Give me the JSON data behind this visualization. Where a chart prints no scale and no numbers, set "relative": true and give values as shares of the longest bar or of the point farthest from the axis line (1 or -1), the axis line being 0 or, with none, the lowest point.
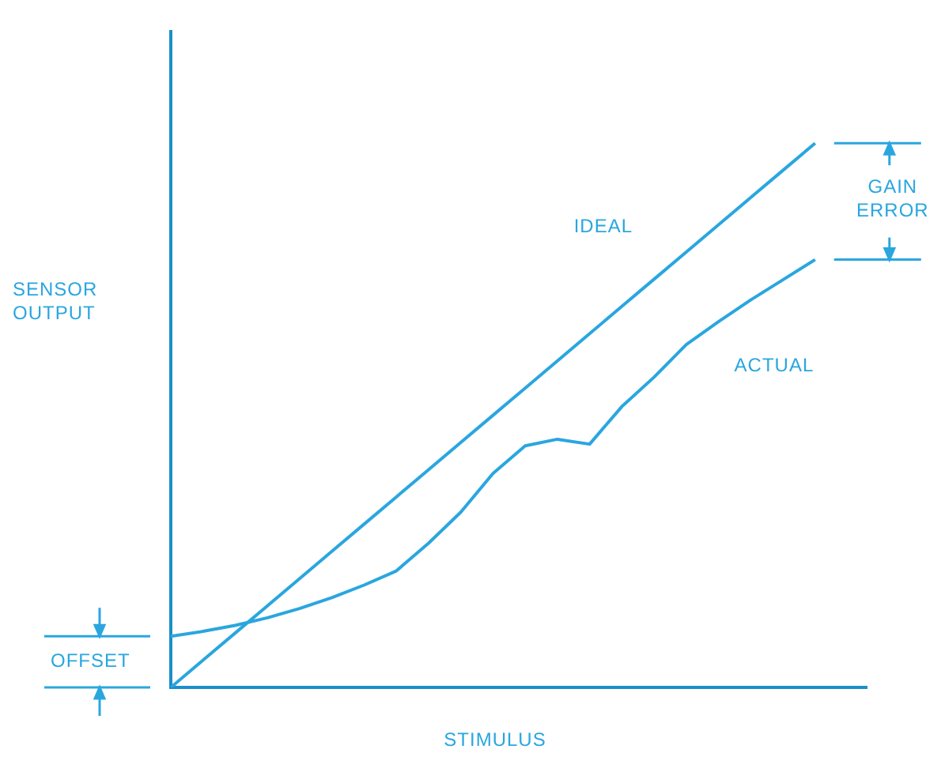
{
  "chart_data": {
    "type": "line",
    "relative": true,
    "xlabel": "STIMULUS",
    "ylabel": "SENSOR OUTPUT",
    "legend": false,
    "grid": false,
    "marker": "none",
    "line_style": "solid",
    "categories": [
      null,
      null,
      null,
      null,
      null,
      null,
      null,
      null,
      null,
      null,
      null,
      null,
      null,
      null,
      null,
      null,
      null,
      null,
      null,
      null,
      null
    ],
    "series": [
      {
        "name": "IDEAL",
        "color": "#2aa6df",
        "values": [
          0,
          0.05,
          0.1,
          0.15,
          0.2,
          0.25,
          0.3,
          0.35,
          0.4,
          0.45,
          0.5,
          0.55,
          0.6,
          0.65,
          0.7,
          0.75,
          0.8,
          0.85,
          0.9,
          0.95,
          1
        ]
      },
      {
        "name": "ACTUAL",
        "color": "#2aa6df",
        "values": [
          0.094,
          0.103,
          0.114,
          0.128,
          0.145,
          0.165,
          0.188,
          0.214,
          0.265,
          0.322,
          0.393,
          0.444,
          0.456,
          0.447,
          0.516,
          0.57,
          0.63,
          0.672,
          0.712,
          0.749,
          0.786
        ]
      }
    ],
    "annotations": [
      "GAIN ERROR",
      "OFFSET"
    ]
  }
}
